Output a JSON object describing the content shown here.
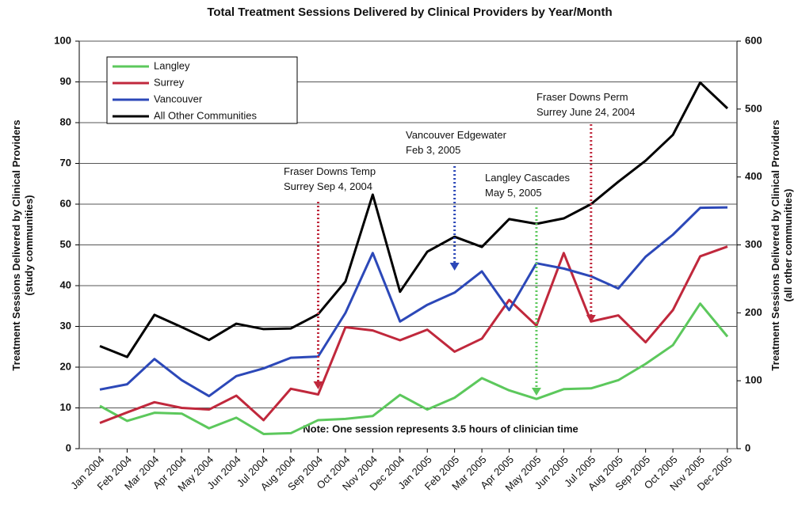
{
  "chart_data": {
    "type": "line",
    "title": "Total Treatment Sessions Delivered by Clinical Providers by Year/Month",
    "y_label": [
      "Treatment Sessions Delivered by Clinical Providers",
      "(study communities)"
    ],
    "y2_label": [
      "Treatment Sessions Delivered by Clinical Providers",
      "(all other communities)"
    ],
    "categories": [
      "Jan 2004",
      "Feb 2004",
      "Mar 2004",
      "Apr 2004",
      "May 2004",
      "Jun 2004",
      "Jul 2004",
      "Aug 2004",
      "Sep 2004",
      "Oct 2004",
      "Nov 2004",
      "Dec 2004",
      "Jan 2005",
      "Feb 2005",
      "Mar 2005",
      "Apr 2005",
      "May 2005",
      "Jun 2005",
      "Jul 2005",
      "Aug 2005",
      "Sep 2005",
      "Oct 2005",
      "Nov 2005",
      "Dec 2005"
    ],
    "series": [
      {
        "name": "Langley",
        "color": "#5cc85c",
        "values": [
          10.5,
          6.8,
          8.8,
          8.6,
          5,
          7.6,
          3.6,
          3.8,
          7,
          7.3,
          8,
          13.2,
          9.6,
          12.5,
          17.3,
          14.3,
          12.2,
          14.6,
          14.8,
          16.8,
          20.8,
          25.4,
          35.6,
          27.5
        ]
      },
      {
        "name": "Surrey",
        "color": "#c0283c",
        "values": [
          6.3,
          8.9,
          11.4,
          10,
          9.6,
          13,
          7,
          14.7,
          13.3,
          29.8,
          29,
          26.6,
          29.2,
          23.8,
          27,
          36.5,
          30.2,
          48,
          31.2,
          32.7,
          26.1,
          34,
          47.2,
          49.6
        ]
      },
      {
        "name": "Vancouver",
        "color": "#2c48b8",
        "values": [
          14.5,
          15.8,
          22,
          16.8,
          12.9,
          17.8,
          19.7,
          22.3,
          22.6,
          33.3,
          48,
          31.2,
          35.3,
          38.3,
          43.5,
          34,
          45.5,
          44.2,
          42.3,
          39.3,
          47.1,
          52.5,
          59.1,
          59.2
        ]
      },
      {
        "name": "All Other Communities",
        "color": "#000000",
        "axis": "y2",
        "values": [
          151,
          135,
          197,
          179,
          160,
          184,
          176,
          177,
          198,
          246,
          374,
          231,
          290,
          312,
          297,
          338,
          331,
          339,
          360,
          393,
          424,
          462,
          539,
          501
        ]
      }
    ],
    "ylim": [
      0,
      100
    ],
    "yticks": [
      0,
      10,
      20,
      30,
      40,
      50,
      60,
      70,
      80,
      90,
      100
    ],
    "y2lim": [
      0,
      600
    ],
    "y2ticks": [
      0,
      100,
      200,
      300,
      400,
      500,
      600
    ],
    "grid": true,
    "annotations": [
      [
        "Fraser Downs Temp",
        "Surrey Sep 4, 2004"
      ],
      [
        "Vancouver Edgewater",
        "Feb 3, 2005"
      ],
      [
        "Langley Cascades",
        "May 5, 2005"
      ],
      [
        "Fraser Downs Perm",
        "Surrey June 24, 2004"
      ]
    ],
    "note": "Note: One session represents 3.5 hours of clinician time"
  }
}
